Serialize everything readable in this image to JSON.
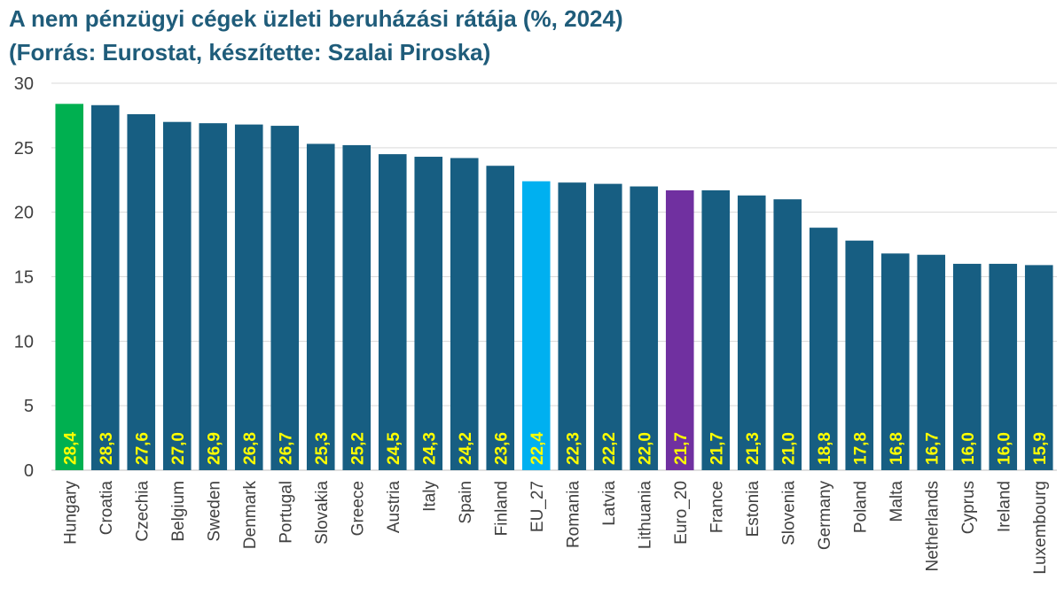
{
  "header": {
    "title_line1": "A nem pénzügyi cégek üzleti beruházási rátája  (%, 2024)",
    "title_line2": "(Forrás: Eurostat, készítette: Szalai Piroska)"
  },
  "chart_data": {
    "type": "bar",
    "title": "A nem pénzügyi cégek üzleti beruházási rátája  (%, 2024)",
    "subtitle": "(Forrás: Eurostat, készítette: Szalai Piroska)",
    "xlabel": "",
    "ylabel": "",
    "ylim": [
      0,
      30
    ],
    "yticks": [
      0,
      5,
      10,
      15,
      20,
      25,
      30
    ],
    "grid": true,
    "legend": "none",
    "categories": [
      "Hungary",
      "Croatia",
      "Czechia",
      "Belgium",
      "Sweden",
      "Denmark",
      "Portugal",
      "Slovakia",
      "Greece",
      "Austria",
      "Italy",
      "Spain",
      "Finland",
      "EU_27",
      "Romania",
      "Latvia",
      "Lithuania",
      "Euro_20",
      "France",
      "Estonia",
      "Slovenia",
      "Germany",
      "Poland",
      "Malta",
      "Netherlands",
      "Cyprus",
      "Ireland",
      "Luxembourg"
    ],
    "values": [
      28.4,
      28.3,
      27.6,
      27.0,
      26.9,
      26.8,
      26.7,
      25.3,
      25.2,
      24.5,
      24.3,
      24.2,
      23.6,
      22.4,
      22.3,
      22.2,
      22.0,
      21.7,
      21.7,
      21.3,
      21.0,
      18.8,
      17.8,
      16.8,
      16.7,
      16.0,
      16.0,
      15.9
    ],
    "data_labels": [
      "28,4",
      "28,3",
      "27,6",
      "27,0",
      "26,9",
      "26,8",
      "26,7",
      "25,3",
      "25,2",
      "24,5",
      "24,3",
      "24,2",
      "23,6",
      "22,4",
      "22,3",
      "22,2",
      "22,0",
      "21,7",
      "21,7",
      "21,3",
      "21,0",
      "18,8",
      "17,8",
      "16,8",
      "16,7",
      "16,0",
      "16,0",
      "15,9"
    ],
    "bar_colors": [
      "#00b050",
      "#175e82",
      "#175e82",
      "#175e82",
      "#175e82",
      "#175e82",
      "#175e82",
      "#175e82",
      "#175e82",
      "#175e82",
      "#175e82",
      "#175e82",
      "#175e82",
      "#00b0f0",
      "#175e82",
      "#175e82",
      "#175e82",
      "#7030a0",
      "#175e82",
      "#175e82",
      "#175e82",
      "#175e82",
      "#175e82",
      "#175e82",
      "#175e82",
      "#175e82",
      "#175e82",
      "#175e82"
    ],
    "data_label_color": "#ffff00",
    "gridline_color": "#d9d9d9"
  }
}
